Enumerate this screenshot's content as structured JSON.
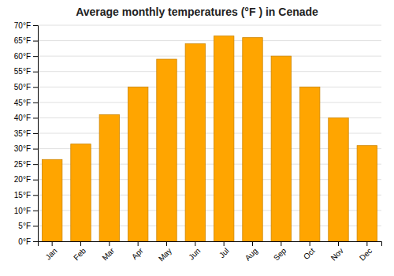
{
  "chart_data": {
    "type": "bar",
    "title": "Average monthly temperatures (°F ) in Cenade",
    "categories": [
      "Jan",
      "Feb",
      "Mar",
      "Apr",
      "May",
      "Jun",
      "Jul",
      "Aug",
      "Sep",
      "Oct",
      "Nov",
      "Dec"
    ],
    "values": [
      26.5,
      31.5,
      41.0,
      50.0,
      59.0,
      64.0,
      66.5,
      66.0,
      60.0,
      50.0,
      40.0,
      31.0
    ],
    "color": "#FFA500",
    "ylim": [
      0,
      70
    ],
    "yticks": [
      {
        "value": 0,
        "label": "0°F"
      },
      {
        "value": 5,
        "label": "5°F"
      },
      {
        "value": 10,
        "label": "10°F"
      },
      {
        "value": 15,
        "label": "15°F"
      },
      {
        "value": 20,
        "label": "20°F"
      },
      {
        "value": 25,
        "label": "25°F"
      },
      {
        "value": 30,
        "label": "30°F"
      },
      {
        "value": 35,
        "label": "35°F"
      },
      {
        "value": 40,
        "label": "40°F"
      },
      {
        "value": 45,
        "label": "45°F"
      },
      {
        "value": 50,
        "label": "50°F"
      },
      {
        "value": 55,
        "label": "55°F"
      },
      {
        "value": 60,
        "label": "60°F"
      },
      {
        "value": 65,
        "label": "65°F"
      },
      {
        "value": 70,
        "label": "70°F"
      }
    ],
    "grid": true
  }
}
